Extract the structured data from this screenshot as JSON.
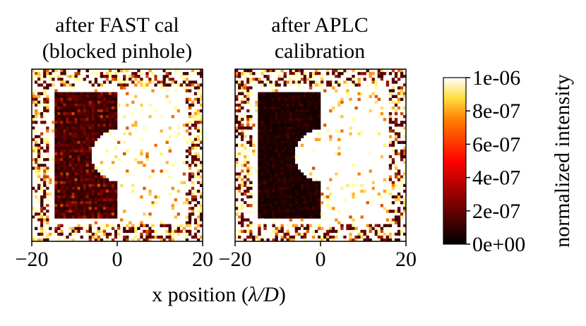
{
  "chart_data": {
    "type": "heatmap",
    "xlabel_prefix": "x position (",
    "xlabel_math": "λ/D",
    "xlabel_suffix": ")",
    "panels": [
      {
        "title_line1": "after FAST cal",
        "title_line2": "(blocked pinhole)",
        "xlim": [
          -20,
          20
        ],
        "xticks": [
          -20,
          0,
          20
        ],
        "xtick_labels": [
          "−20",
          "0",
          "20"
        ],
        "dark_hole_depth": 0.25
      },
      {
        "title_line1": "after APLC",
        "title_line2": "calibration",
        "xlim": [
          -20,
          20
        ],
        "xticks": [
          -20,
          0,
          20
        ],
        "xtick_labels": [
          "−20",
          "0",
          "20"
        ],
        "dark_hole_depth": 0.1
      }
    ],
    "colorbar": {
      "label": "normalized intensity",
      "colormap": "afmhot",
      "vmin": 0,
      "vmax": 1e-06,
      "ticks": [
        0,
        2e-07,
        4e-07,
        6e-07,
        8e-07,
        1e-06
      ],
      "tick_labels": [
        "0e+00",
        "2e-07",
        "4e-07",
        "6e-07",
        "8e-07",
        "1e-06"
      ]
    }
  }
}
